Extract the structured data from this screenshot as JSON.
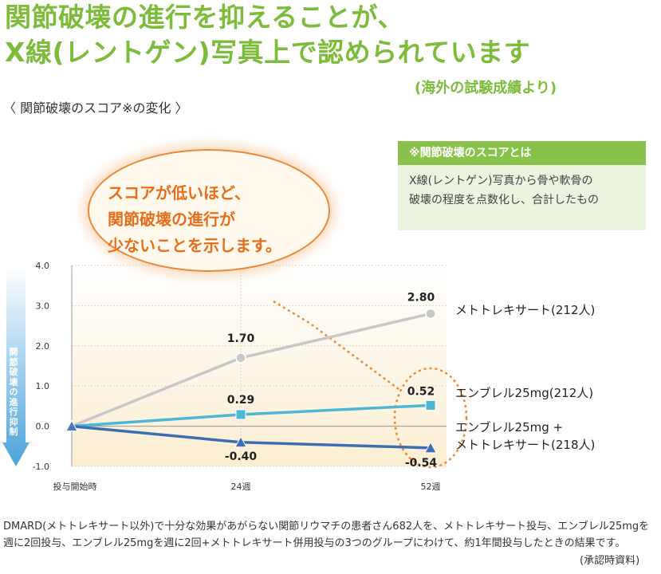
{
  "header": {
    "title_line1": "関節破壊の進行を抑えることが、",
    "title_line2": "X線(レントゲン)写真上で認められています",
    "source": "(海外の試験成績より)"
  },
  "section_label": "〈 関節破壊のスコア※の変化 〉",
  "info_box": {
    "title": "※関節破壊のスコアとは",
    "line1": "X線(レントゲン)写真から骨や軟骨の",
    "line2": "破壊の程度を点数化し、合計したもの"
  },
  "callout": {
    "line1": "スコアが低いほど、",
    "line2": "関節破壊の進行が",
    "line3": "少ないことを示します。"
  },
  "side_arrow_label": "関節破壊の進行抑制",
  "chart_data": {
    "type": "line",
    "categories": [
      "投与開始時",
      "24週",
      "52週"
    ],
    "ylim": [
      -1.0,
      4.0
    ],
    "yticks": [
      "4.0",
      "3.0",
      "2.0",
      "1.0",
      "0.0",
      "-1.0"
    ],
    "series": [
      {
        "name": "メトトレキサート(212人)",
        "values": [
          0,
          1.7,
          2.8
        ],
        "labels": [
          "",
          "1.70",
          "2.80"
        ],
        "color": "#c8c8c8",
        "marker": "circle"
      },
      {
        "name": "エンブレル25mg(212人)",
        "values": [
          0,
          0.29,
          0.52
        ],
        "labels": [
          "",
          "0.29",
          "0.52"
        ],
        "color": "#4ab8d4",
        "marker": "square"
      },
      {
        "name": "エンブレル25mg + メトトレキサート(218人)",
        "name_line1": "エンブレル25mg +",
        "name_line2": "メトトレキサート(218人)",
        "values": [
          0,
          -0.4,
          -0.54
        ],
        "labels": [
          "",
          "-0.40",
          "-0.54"
        ],
        "color": "#3d6eb4",
        "marker": "triangle"
      }
    ],
    "grid": true
  },
  "footnote": "DMARD(メトトレキサート以外)で十分な効果があがらない関節リウマチの患者さん682人を、メトトレキサート投与、エンブレル25mgを週に2回投与、エンブレル25mgを週に2回+メトトレキサート併用投与の3つのグループにわけて、約1年間投与したときの結果です。",
  "approval_note": "(承認時資料)",
  "colors": {
    "accent": "#7dbb3a",
    "callout": "#e66e1a"
  }
}
